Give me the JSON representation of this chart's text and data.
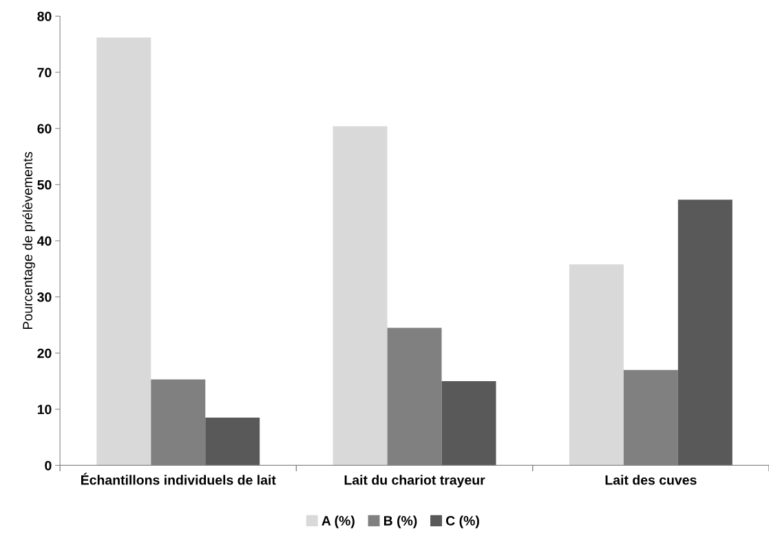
{
  "chart_data": {
    "type": "bar",
    "ylabel": "Pourcentage de prélèvements",
    "categories": [
      "Échantillons individuels de lait",
      "Lait du chariot trayeur",
      "Lait des cuves"
    ],
    "series": [
      {
        "name": "A (%)",
        "color": "#d9d9d9",
        "values": [
          76.2,
          60.4,
          35.8
        ]
      },
      {
        "name": "B (%)",
        "color": "#808080",
        "values": [
          15.3,
          24.5,
          17.0
        ]
      },
      {
        "name": "C (%)",
        "color": "#595959",
        "values": [
          8.5,
          15.0,
          47.3
        ]
      }
    ],
    "ylim": [
      0,
      80
    ],
    "yticks": [
      0,
      10,
      20,
      30,
      40,
      50,
      60,
      70,
      80
    ],
    "grid": false,
    "legend": "bottom"
  }
}
